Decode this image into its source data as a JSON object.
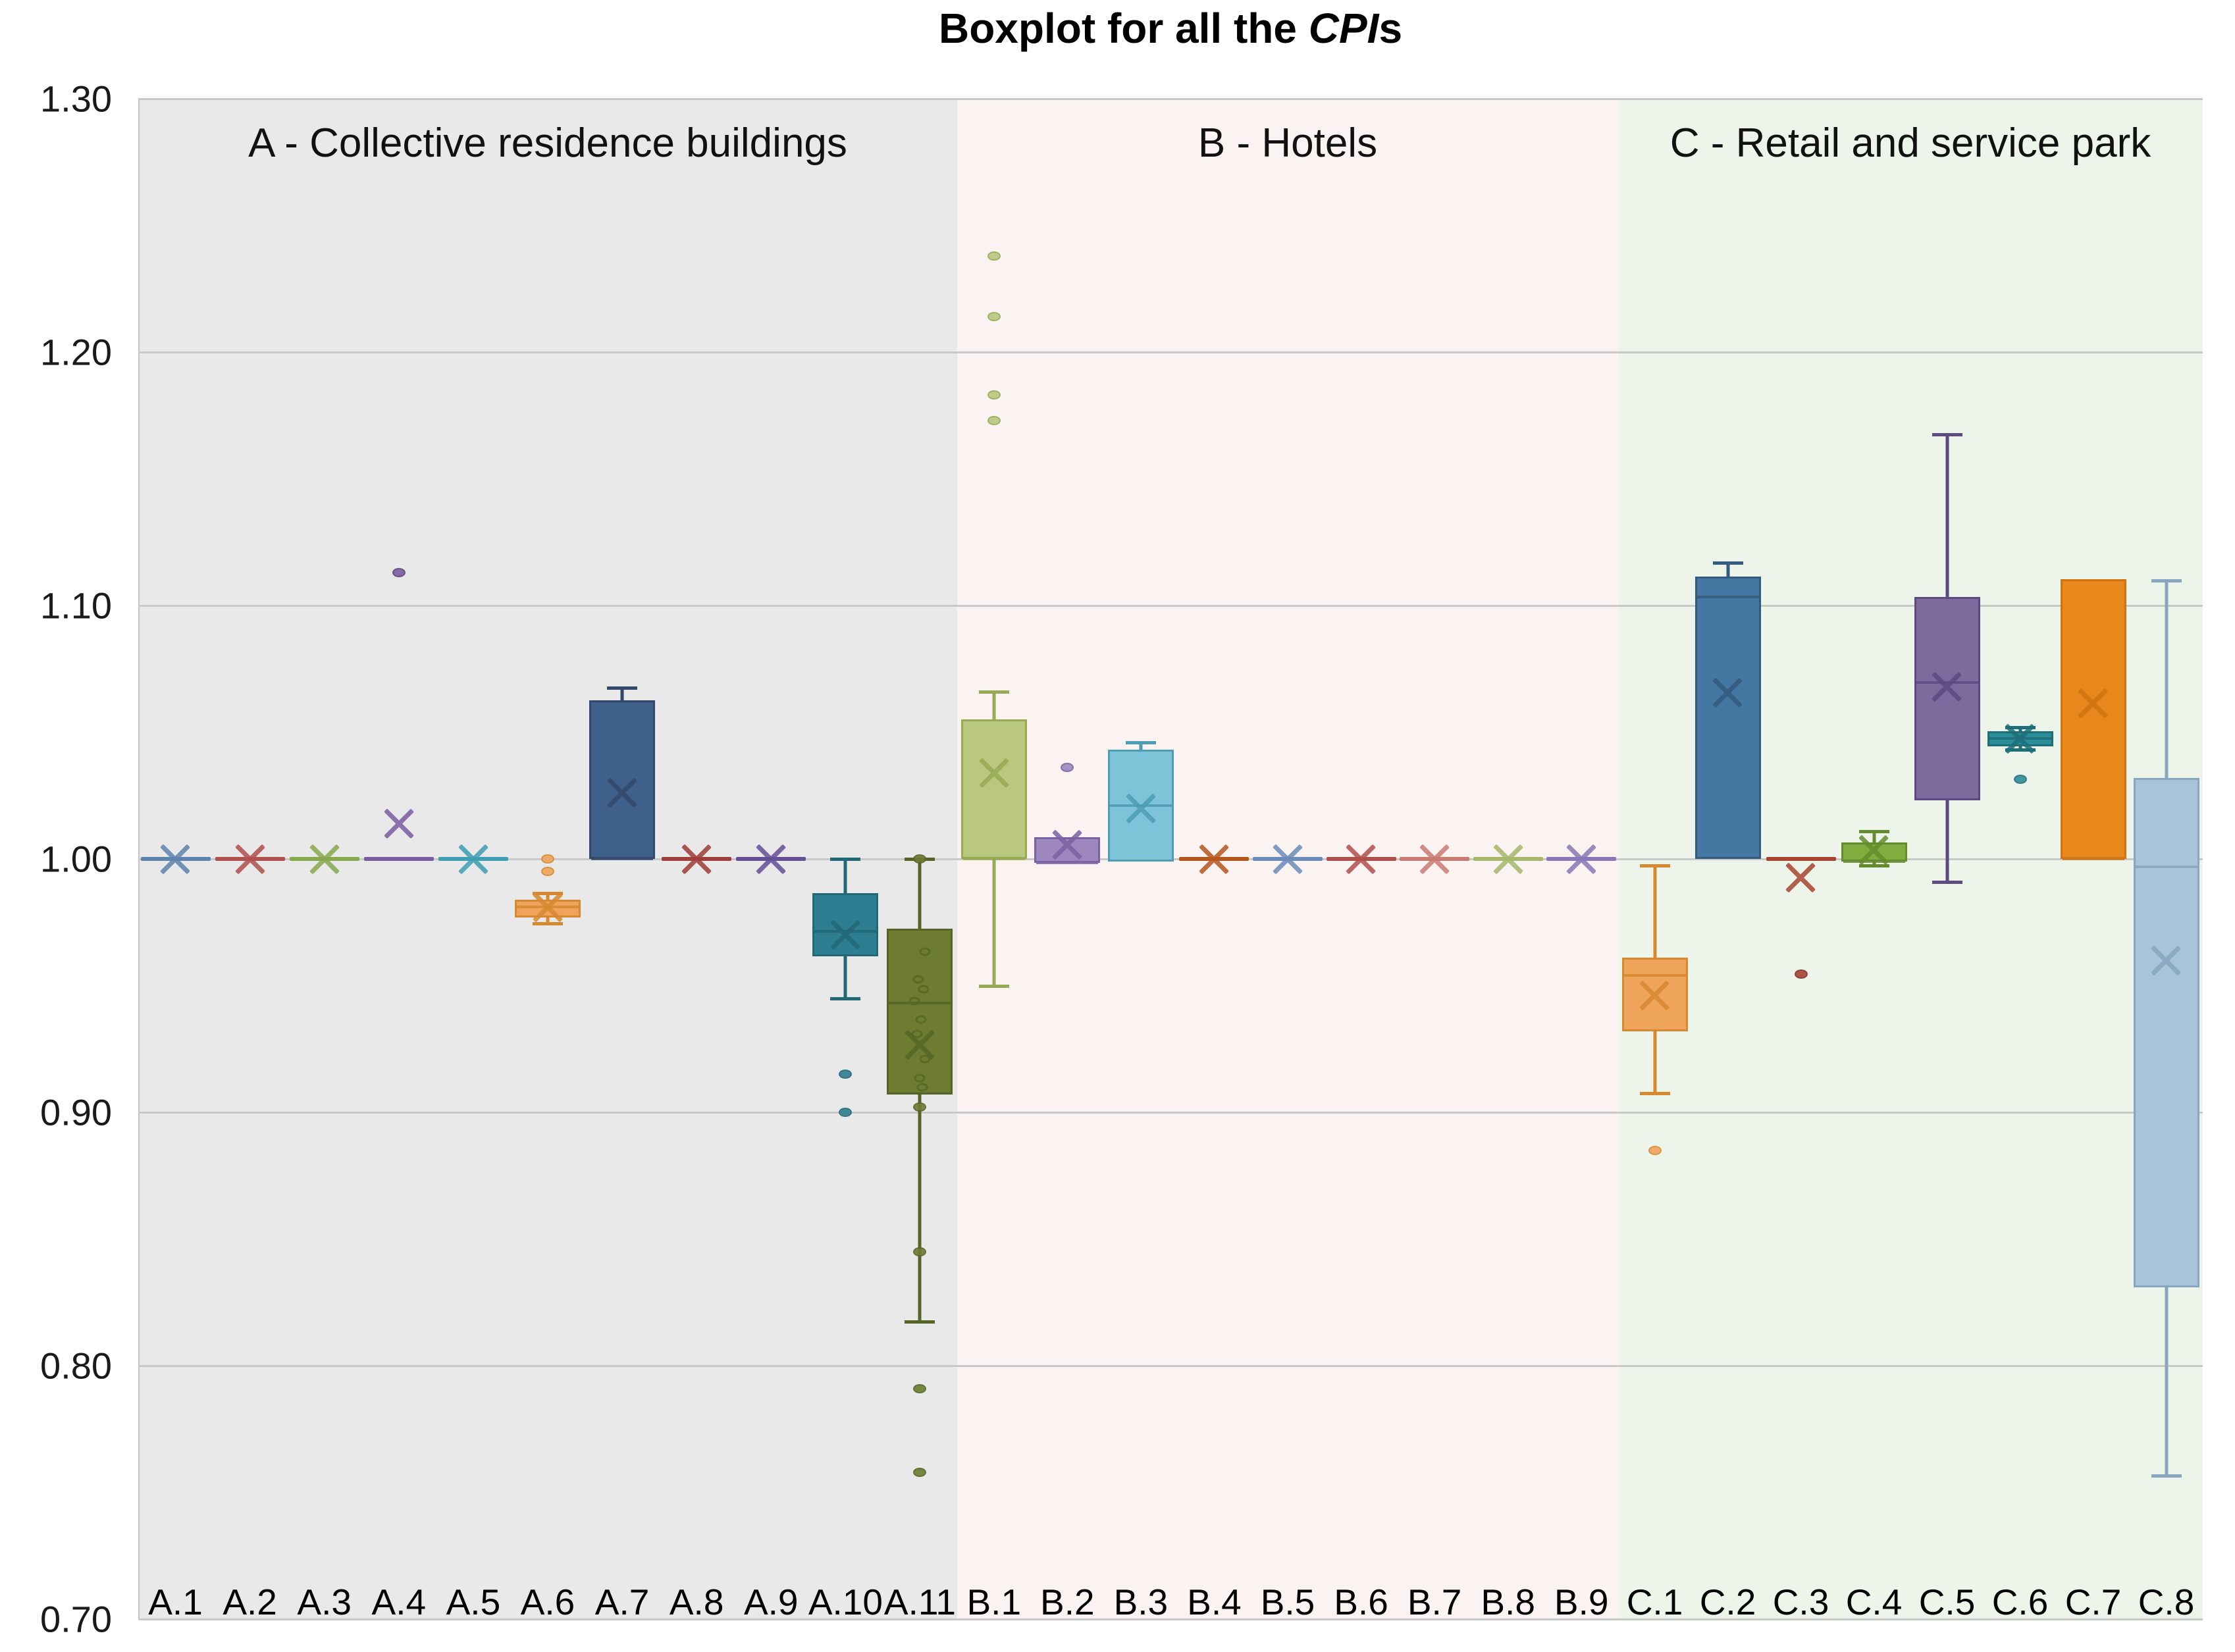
{
  "title": {
    "prefix": "Boxplot for all the ",
    "italic": "CPI",
    "suffix": "s"
  },
  "chart_data": {
    "type": "box",
    "title": "Boxplot for all the CPIs",
    "grid": true,
    "y_axis": {
      "min": 0.7,
      "max": 1.3,
      "step": 0.1,
      "tick_labels": [
        "1.30",
        "1.20",
        "1.10",
        "1.00",
        "0.90",
        "0.80",
        "0.70"
      ]
    },
    "sections": [
      {
        "id": "A",
        "label": "A - Collective residence buildings",
        "bg": "#e9e9e9",
        "x_start": 210,
        "x_end": 1454,
        "count": 11
      },
      {
        "id": "B",
        "label": "B - Hotels",
        "bg": "#fbf3f2",
        "x_start": 1454,
        "x_end": 2458,
        "count": 9
      },
      {
        "id": "C",
        "label": "C - Retail and service park",
        "bg": "#edf5ea",
        "x_start": 2458,
        "x_end": 3346,
        "count": 8
      }
    ],
    "series": [
      {
        "label": "A.1",
        "section": "A",
        "type": "flat",
        "value": 1.0,
        "mean": 1.0,
        "color": "#5d82ad"
      },
      {
        "label": "A.2",
        "section": "A",
        "type": "flat",
        "value": 1.0,
        "mean": 1.0,
        "color": "#b0504d"
      },
      {
        "label": "A.3",
        "section": "A",
        "type": "flat",
        "value": 1.0,
        "mean": 1.0,
        "color": "#87a84c"
      },
      {
        "label": "A.4",
        "section": "A",
        "type": "flat",
        "value": 1.0,
        "mean": 1.014,
        "color": "#7a5da1",
        "outliers": [
          1.113
        ]
      },
      {
        "label": "A.5",
        "section": "A",
        "type": "flat",
        "value": 1.0,
        "mean": 1.0,
        "color": "#3f9db4"
      },
      {
        "label": "A.6",
        "section": "A",
        "type": "box",
        "q1": 0.977,
        "median": 0.981,
        "q3": 0.984,
        "mean": 0.981,
        "whisker_low": 0.9745,
        "whisker_high": 0.9865,
        "outliers": [
          1.0,
          0.995
        ],
        "fill": "#efa45c",
        "stroke": "#d8882e"
      },
      {
        "label": "A.7",
        "section": "A",
        "type": "box",
        "q1": 1.0,
        "median": 1.0,
        "q3": 1.0625,
        "mean": 1.026,
        "whisker_low": 1.0,
        "whisker_high": 1.0675,
        "fill": "#40608c",
        "stroke": "#33496b"
      },
      {
        "label": "A.8",
        "section": "A",
        "type": "flat",
        "value": 1.0,
        "mean": 1.0,
        "color": "#9e3d3a"
      },
      {
        "label": "A.9",
        "section": "A",
        "type": "flat",
        "value": 1.0,
        "mean": 1.0,
        "color": "#655096"
      },
      {
        "label": "A.10",
        "section": "A",
        "type": "box",
        "q1": 0.9615,
        "median": 0.9715,
        "q3": 0.9865,
        "mean": 0.97,
        "whisker_low": 0.945,
        "whisker_high": 1.0,
        "outliers": [
          0.915,
          0.9
        ],
        "fill": "#2e7e91",
        "stroke": "#236877"
      },
      {
        "label": "A.11",
        "section": "A",
        "type": "box",
        "q1": 0.907,
        "median": 0.943,
        "q3": 0.9725,
        "mean": 0.9265,
        "whisker_low": 0.8175,
        "whisker_high": 1.0,
        "outliers": [
          1.0,
          0.902,
          0.845,
          0.791,
          0.758
        ],
        "points": [
          0.9635,
          0.9525,
          0.9485,
          0.944,
          0.9365,
          0.931,
          0.921,
          0.9135,
          0.91
        ],
        "fill": "#6d7c31",
        "stroke": "#556526"
      },
      {
        "label": "B.1",
        "section": "B",
        "type": "box",
        "q1": 1.0,
        "median": 1.0,
        "q3": 1.055,
        "mean": 1.034,
        "whisker_low": 0.95,
        "whisker_high": 1.066,
        "outliers": [
          1.238,
          1.214,
          1.183,
          1.173
        ],
        "fill": "#b9c87e",
        "stroke": "#97aa54"
      },
      {
        "label": "B.2",
        "section": "B",
        "type": "box",
        "q1": 0.9985,
        "median": 0.9985,
        "q3": 1.0085,
        "mean": 1.0055,
        "whisker_low": 0.9985,
        "whisker_high": 1.0085,
        "outliers": [
          1.036
        ],
        "fill": "#9e87bd",
        "stroke": "#7a61a3"
      },
      {
        "label": "B.3",
        "section": "B",
        "type": "box",
        "q1": 0.999,
        "median": 1.021,
        "q3": 1.043,
        "mean": 1.02,
        "whisker_low": 0.999,
        "whisker_high": 1.046,
        "fill": "#7ec3d7",
        "stroke": "#4d9db6"
      },
      {
        "label": "B.4",
        "section": "B",
        "type": "flat",
        "value": 1.0,
        "mean": 1.0,
        "color": "#b5561d"
      },
      {
        "label": "B.5",
        "section": "B",
        "type": "flat",
        "value": 1.0,
        "mean": 1.0,
        "color": "#6b8cba"
      },
      {
        "label": "B.6",
        "section": "B",
        "type": "flat",
        "value": 1.0,
        "mean": 1.0,
        "color": "#b0504d"
      },
      {
        "label": "B.7",
        "section": "B",
        "type": "flat",
        "value": 1.0,
        "mean": 1.0,
        "color": "#c97b72"
      },
      {
        "label": "B.8",
        "section": "B",
        "type": "flat",
        "value": 1.0,
        "mean": 1.0,
        "color": "#a6b86b"
      },
      {
        "label": "B.9",
        "section": "B",
        "type": "flat",
        "value": 1.0,
        "mean": 1.0,
        "color": "#8878b5"
      },
      {
        "label": "C.1",
        "section": "C",
        "type": "box",
        "q1": 0.932,
        "median": 0.954,
        "q3": 0.961,
        "mean": 0.946,
        "whisker_low": 0.9075,
        "whisker_high": 0.9975,
        "outliers": [
          0.885
        ],
        "fill": "#efa45c",
        "stroke": "#d8882e"
      },
      {
        "label": "C.2",
        "section": "C",
        "type": "box",
        "q1": 1.0,
        "median": 1.1035,
        "q3": 1.1115,
        "mean": 1.0655,
        "whisker_low": 1.0,
        "whisker_high": 1.117,
        "fill": "#4577a3",
        "stroke": "#345a7d"
      },
      {
        "label": "C.3",
        "section": "C",
        "type": "flat",
        "value": 1.0,
        "mean": 0.9925,
        "color": "#a84432",
        "outliers": [
          0.9545
        ]
      },
      {
        "label": "C.4",
        "section": "C",
        "type": "box",
        "q1": 0.999,
        "median": 0.999,
        "q3": 1.0065,
        "mean": 1.0035,
        "whisker_low": 0.9975,
        "whisker_high": 1.011,
        "fill": "#7fae3e",
        "stroke": "#648c2e"
      },
      {
        "label": "C.5",
        "section": "C",
        "type": "box",
        "q1": 1.023,
        "median": 1.0695,
        "q3": 1.1035,
        "mean": 1.068,
        "whisker_low": 0.991,
        "whisker_high": 1.1675,
        "fill": "#7e6b9d",
        "stroke": "#5c4a81"
      },
      {
        "label": "C.6",
        "section": "C",
        "type": "box",
        "q1": 1.0445,
        "median": 1.0475,
        "q3": 1.0505,
        "mean": 1.0475,
        "whisker_low": 1.043,
        "whisker_high": 1.052,
        "outliers": [
          1.0315
        ],
        "fill": "#2a8d98",
        "stroke": "#1e6f79"
      },
      {
        "label": "C.7",
        "section": "C",
        "type": "box",
        "q1": 1.0,
        "median": 1.0,
        "q3": 1.1105,
        "mean": 1.0615,
        "whisker_low": 1.0,
        "whisker_high": 1.1105,
        "fill": "#e8881c",
        "stroke": "#ce7410"
      },
      {
        "label": "C.8",
        "section": "C",
        "type": "box",
        "q1": 0.831,
        "median": 0.997,
        "q3": 1.032,
        "mean": 0.96,
        "whisker_low": 0.7565,
        "whisker_high": 1.11,
        "fill": "#a8c4d9",
        "stroke": "#87a6c0"
      }
    ],
    "layout": {
      "plot_left": 210,
      "plot_top": 150,
      "plot_bottom": 2460,
      "grid_color": "#c9c9c9"
    }
  }
}
